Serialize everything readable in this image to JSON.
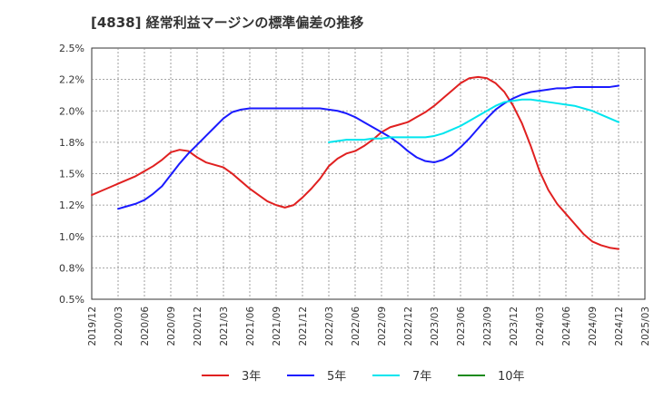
{
  "chart_data": {
    "type": "line",
    "title": "[4838]  経常利益マージンの標準偏差の推移",
    "x_ticks": [
      "2019/12",
      "2020/03",
      "2020/06",
      "2020/09",
      "2020/12",
      "2021/03",
      "2021/06",
      "2021/09",
      "2021/12",
      "2022/03",
      "2022/06",
      "2022/09",
      "2022/12",
      "2023/03",
      "2023/06",
      "2023/09",
      "2023/12",
      "2024/03",
      "2024/06",
      "2024/09",
      "2024/12",
      "2025/03"
    ],
    "y_ticks": [
      "0.5%",
      "0.8%",
      "1.0%",
      "1.2%",
      "1.5%",
      "1.8%",
      "2.0%",
      "2.2%",
      "2.5%"
    ],
    "ylim": [
      0.5,
      2.5
    ],
    "grid": true,
    "legend_position": "bottom",
    "series": [
      {
        "name": "3年",
        "color": "#e02020",
        "x": [
          "2019/12",
          "2020/01",
          "2020/02",
          "2020/03",
          "2020/04",
          "2020/05",
          "2020/06",
          "2020/07",
          "2020/08",
          "2020/09",
          "2020/10",
          "2020/11",
          "2020/12",
          "2021/01",
          "2021/02",
          "2021/03",
          "2021/04",
          "2021/05",
          "2021/06",
          "2021/07",
          "2021/08",
          "2021/09",
          "2021/10",
          "2021/11",
          "2021/12",
          "2022/01",
          "2022/02",
          "2022/03",
          "2022/04",
          "2022/05",
          "2022/06",
          "2022/07",
          "2022/08",
          "2022/09",
          "2022/10",
          "2022/11",
          "2022/12",
          "2023/01",
          "2023/02",
          "2023/03",
          "2023/04",
          "2023/05",
          "2023/06",
          "2023/07",
          "2023/08",
          "2023/09",
          "2023/10",
          "2023/11",
          "2023/12",
          "2024/01",
          "2024/02",
          "2024/03",
          "2024/04",
          "2024/05",
          "2024/06",
          "2024/07",
          "2024/08",
          "2024/09",
          "2024/10",
          "2024/11",
          "2024/12"
        ],
        "values": [
          1.33,
          1.36,
          1.39,
          1.42,
          1.45,
          1.48,
          1.52,
          1.56,
          1.61,
          1.67,
          1.69,
          1.68,
          1.63,
          1.59,
          1.57,
          1.55,
          1.5,
          1.44,
          1.38,
          1.33,
          1.28,
          1.25,
          1.23,
          1.25,
          1.31,
          1.38,
          1.46,
          1.56,
          1.62,
          1.66,
          1.68,
          1.72,
          1.77,
          1.83,
          1.87,
          1.89,
          1.91,
          1.95,
          1.99,
          2.04,
          2.1,
          2.16,
          2.22,
          2.26,
          2.27,
          2.26,
          2.22,
          2.15,
          2.04,
          1.9,
          1.72,
          1.52,
          1.37,
          1.26,
          1.18,
          1.1,
          1.02,
          0.96,
          0.93,
          0.91,
          0.9
        ]
      },
      {
        "name": "5年",
        "color": "#1a1aff",
        "x": [
          "2020/03",
          "2020/04",
          "2020/05",
          "2020/06",
          "2020/07",
          "2020/08",
          "2020/09",
          "2020/10",
          "2020/11",
          "2020/12",
          "2021/01",
          "2021/02",
          "2021/03",
          "2021/04",
          "2021/05",
          "2021/06",
          "2021/07",
          "2021/08",
          "2021/09",
          "2021/10",
          "2021/11",
          "2021/12",
          "2022/01",
          "2022/02",
          "2022/03",
          "2022/04",
          "2022/05",
          "2022/06",
          "2022/07",
          "2022/08",
          "2022/09",
          "2022/10",
          "2022/11",
          "2022/12",
          "2023/01",
          "2023/02",
          "2023/03",
          "2023/04",
          "2023/05",
          "2023/06",
          "2023/07",
          "2023/08",
          "2023/09",
          "2023/10",
          "2023/11",
          "2023/12",
          "2024/01",
          "2024/02",
          "2024/03",
          "2024/04",
          "2024/05",
          "2024/06",
          "2024/07",
          "2024/08",
          "2024/09",
          "2024/10",
          "2024/11",
          "2024/12"
        ],
        "values": [
          1.22,
          1.24,
          1.26,
          1.29,
          1.34,
          1.4,
          1.49,
          1.58,
          1.66,
          1.73,
          1.8,
          1.87,
          1.94,
          1.99,
          2.01,
          2.02,
          2.02,
          2.02,
          2.02,
          2.02,
          2.02,
          2.02,
          2.02,
          2.02,
          2.01,
          2.0,
          1.98,
          1.95,
          1.91,
          1.87,
          1.83,
          1.79,
          1.74,
          1.68,
          1.63,
          1.6,
          1.59,
          1.61,
          1.65,
          1.71,
          1.78,
          1.86,
          1.94,
          2.01,
          2.06,
          2.1,
          2.13,
          2.15,
          2.16,
          2.17,
          2.18,
          2.18,
          2.19,
          2.19,
          2.19,
          2.19,
          2.19,
          2.2
        ]
      },
      {
        "name": "7年",
        "color": "#00e5ee",
        "x": [
          "2022/03",
          "2022/04",
          "2022/05",
          "2022/06",
          "2022/07",
          "2022/08",
          "2022/09",
          "2022/10",
          "2022/11",
          "2022/12",
          "2023/01",
          "2023/02",
          "2023/03",
          "2023/04",
          "2023/05",
          "2023/06",
          "2023/07",
          "2023/08",
          "2023/09",
          "2023/10",
          "2023/11",
          "2023/12",
          "2024/01",
          "2024/02",
          "2024/03",
          "2024/04",
          "2024/05",
          "2024/06",
          "2024/07",
          "2024/08",
          "2024/09",
          "2024/10",
          "2024/11",
          "2024/12"
        ],
        "values": [
          1.75,
          1.76,
          1.77,
          1.77,
          1.77,
          1.78,
          1.78,
          1.79,
          1.79,
          1.79,
          1.79,
          1.79,
          1.8,
          1.82,
          1.85,
          1.88,
          1.92,
          1.96,
          2.0,
          2.04,
          2.07,
          2.08,
          2.09,
          2.09,
          2.08,
          2.07,
          2.06,
          2.05,
          2.04,
          2.02,
          2.0,
          1.97,
          1.94,
          1.91
        ]
      },
      {
        "name": "10年",
        "color": "#1a8a1a",
        "x": [],
        "values": []
      }
    ]
  }
}
